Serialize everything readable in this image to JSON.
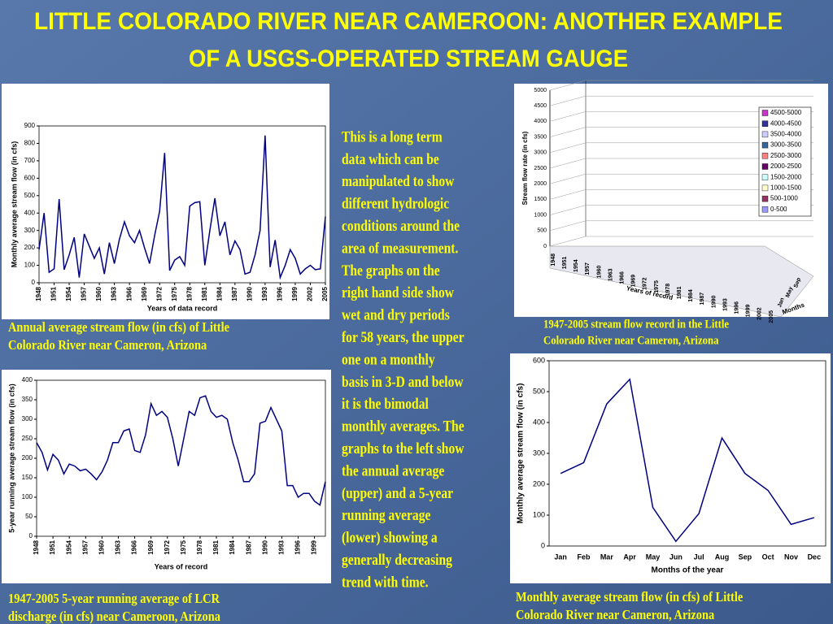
{
  "title": [
    "LITTLE COLORADO RIVER NEAR CAMEROON: ANOTHER EXAMPLE",
    "OF A USGS-OPERATED STREAM GAUGE"
  ],
  "body_text": [
    "This is a long term",
    "data which can be",
    "manipulated to show",
    "different hydrologic",
    "conditions around the",
    "area of measurement.",
    "The graphs on the",
    "right hand side show",
    "wet and dry periods",
    "for 58 years, the upper",
    "one on a monthly",
    "basis in 3-D and below",
    "it is the bimodal",
    "monthly averages. The",
    "graphs to the left show",
    "the annual average",
    "(upper) and a 5-year",
    "running average",
    "(lower) showing a",
    "generally decreasing",
    "trend with time."
  ],
  "captions": [
    [
      "Annual average stream flow (in cfs) of Little",
      "Colorado River near Cameron, Arizona"
    ],
    [
      "1947-2005 5-year running average of LCR",
      "discharge (in cfs) near Cameroon, Arizona"
    ],
    [
      "Monthly average stream flow (in cfs) of Little",
      "Colorado River near Cameron, Arizona"
    ],
    [
      "1947-2005 stream flow record in the Little",
      "Colorado River near Cameron, Arizona"
    ]
  ],
  "chart_data": [
    {
      "type": "line",
      "xlabel": "Years of data record",
      "ylabel": "Monthly average stream flow (in cfs)",
      "color": "#000080",
      "x": [
        1948,
        1949,
        1950,
        1951,
        1952,
        1953,
        1954,
        1955,
        1956,
        1957,
        1958,
        1959,
        1960,
        1961,
        1962,
        1963,
        1964,
        1965,
        1966,
        1967,
        1968,
        1969,
        1970,
        1971,
        1972,
        1973,
        1974,
        1975,
        1976,
        1977,
        1978,
        1979,
        1980,
        1981,
        1982,
        1983,
        1984,
        1985,
        1986,
        1987,
        1988,
        1989,
        1990,
        1991,
        1992,
        1993,
        1994,
        1995,
        1996,
        1997,
        1998,
        1999,
        2000,
        2001,
        2002,
        2003,
        2004,
        2005
      ],
      "values": [
        190,
        400,
        60,
        80,
        480,
        75,
        160,
        260,
        30,
        280,
        210,
        140,
        200,
        50,
        230,
        110,
        250,
        350,
        270,
        230,
        300,
        200,
        110,
        270,
        410,
        745,
        70,
        130,
        150,
        100,
        440,
        460,
        465,
        100,
        300,
        485,
        270,
        350,
        160,
        240,
        190,
        50,
        60,
        160,
        300,
        845,
        90,
        245,
        30,
        100,
        190,
        140,
        50,
        80,
        100,
        75,
        80,
        380
      ],
      "xlim": [
        1948,
        2005
      ],
      "xticks": [
        1948,
        1951,
        1954,
        1957,
        1960,
        1963,
        1966,
        1969,
        1972,
        1975,
        1978,
        1981,
        1984,
        1987,
        1990,
        1993,
        1996,
        1999,
        2002,
        2005
      ],
      "ylim": [
        0,
        900
      ],
      "yticks": [
        0,
        100,
        200,
        300,
        400,
        500,
        600,
        700,
        800,
        900
      ]
    },
    {
      "type": "line",
      "xlabel": "Years of record",
      "ylabel": "5-year running average stream flow (in cfs)",
      "color": "#000080",
      "x": [
        1948,
        1949,
        1950,
        1951,
        1952,
        1953,
        1954,
        1955,
        1956,
        1957,
        1958,
        1959,
        1960,
        1961,
        1962,
        1963,
        1964,
        1965,
        1966,
        1967,
        1968,
        1969,
        1970,
        1971,
        1972,
        1973,
        1974,
        1975,
        1976,
        1977,
        1978,
        1979,
        1980,
        1981,
        1982,
        1983,
        1984,
        1985,
        1986,
        1987,
        1988,
        1989,
        1990,
        1991,
        1992,
        1993,
        1994,
        1995,
        1996,
        1997,
        1998,
        1999,
        2000,
        2001
      ],
      "values": [
        240,
        215,
        170,
        210,
        195,
        160,
        185,
        180,
        168,
        172,
        160,
        145,
        165,
        195,
        240,
        240,
        270,
        275,
        220,
        215,
        260,
        340,
        310,
        320,
        305,
        250,
        180,
        250,
        320,
        310,
        355,
        360,
        320,
        305,
        310,
        300,
        240,
        195,
        140,
        140,
        160,
        290,
        295,
        330,
        300,
        270,
        130,
        130,
        100,
        110,
        110,
        90,
        80,
        140
      ],
      "xlim": [
        1948,
        2001
      ],
      "xticks": [
        1948,
        1951,
        1954,
        1957,
        1960,
        1963,
        1966,
        1969,
        1972,
        1975,
        1978,
        1981,
        1984,
        1987,
        1990,
        1993,
        1996,
        1999
      ],
      "ylim": [
        0,
        400
      ],
      "yticks": [
        0,
        50,
        100,
        150,
        200,
        250,
        300,
        350,
        400
      ]
    },
    {
      "type": "line",
      "xlabel": "Months of the year",
      "ylabel": "Monthly average stream flow (in cfs)",
      "color": "#000080",
      "categories": [
        "Jan",
        "Feb",
        "Mar",
        "Apr",
        "May",
        "Jun",
        "Jul",
        "Aug",
        "Sep",
        "Oct",
        "Nov",
        "Dec"
      ],
      "values": [
        235,
        270,
        460,
        540,
        125,
        15,
        105,
        350,
        235,
        180,
        70,
        92
      ],
      "ylim": [
        0,
        600
      ],
      "yticks": [
        0,
        100,
        200,
        300,
        400,
        500,
        600
      ]
    },
    {
      "type": "surface3d",
      "xlabel": "Years of record",
      "ylabel": "Stream flow rate (in cfs)",
      "zlabel": "Months",
      "xticks": [
        "1948",
        "1951",
        "1954",
        "1957",
        "1960",
        "1963",
        "1966",
        "1969",
        "1972",
        "1975",
        "1978",
        "1981",
        "1984",
        "1987",
        "1990",
        "1993",
        "1996",
        "1999",
        "2002",
        "2005"
      ],
      "zticks": [
        "Jan",
        "May",
        "Sep"
      ],
      "ylim": [
        0,
        5000
      ],
      "yticks": [
        0,
        500,
        1000,
        1500,
        2000,
        2500,
        3000,
        3500,
        4000,
        4500,
        5000
      ],
      "series": [
        {
          "name": "4500-5000",
          "color": "#cc33cc"
        },
        {
          "name": "4000-4500",
          "color": "#333399"
        },
        {
          "name": "3500-4000",
          "color": "#ccccff"
        },
        {
          "name": "3000-3500",
          "color": "#336699"
        },
        {
          "name": "2500-3000",
          "color": "#ff8080"
        },
        {
          "name": "2000-2500",
          "color": "#660066"
        },
        {
          "name": "1500-2000",
          "color": "#ccffff"
        },
        {
          "name": "1000-1500",
          "color": "#ffffcc"
        },
        {
          "name": "500-1000",
          "color": "#993366"
        },
        {
          "name": "0-500",
          "color": "#9999ff"
        }
      ]
    }
  ]
}
